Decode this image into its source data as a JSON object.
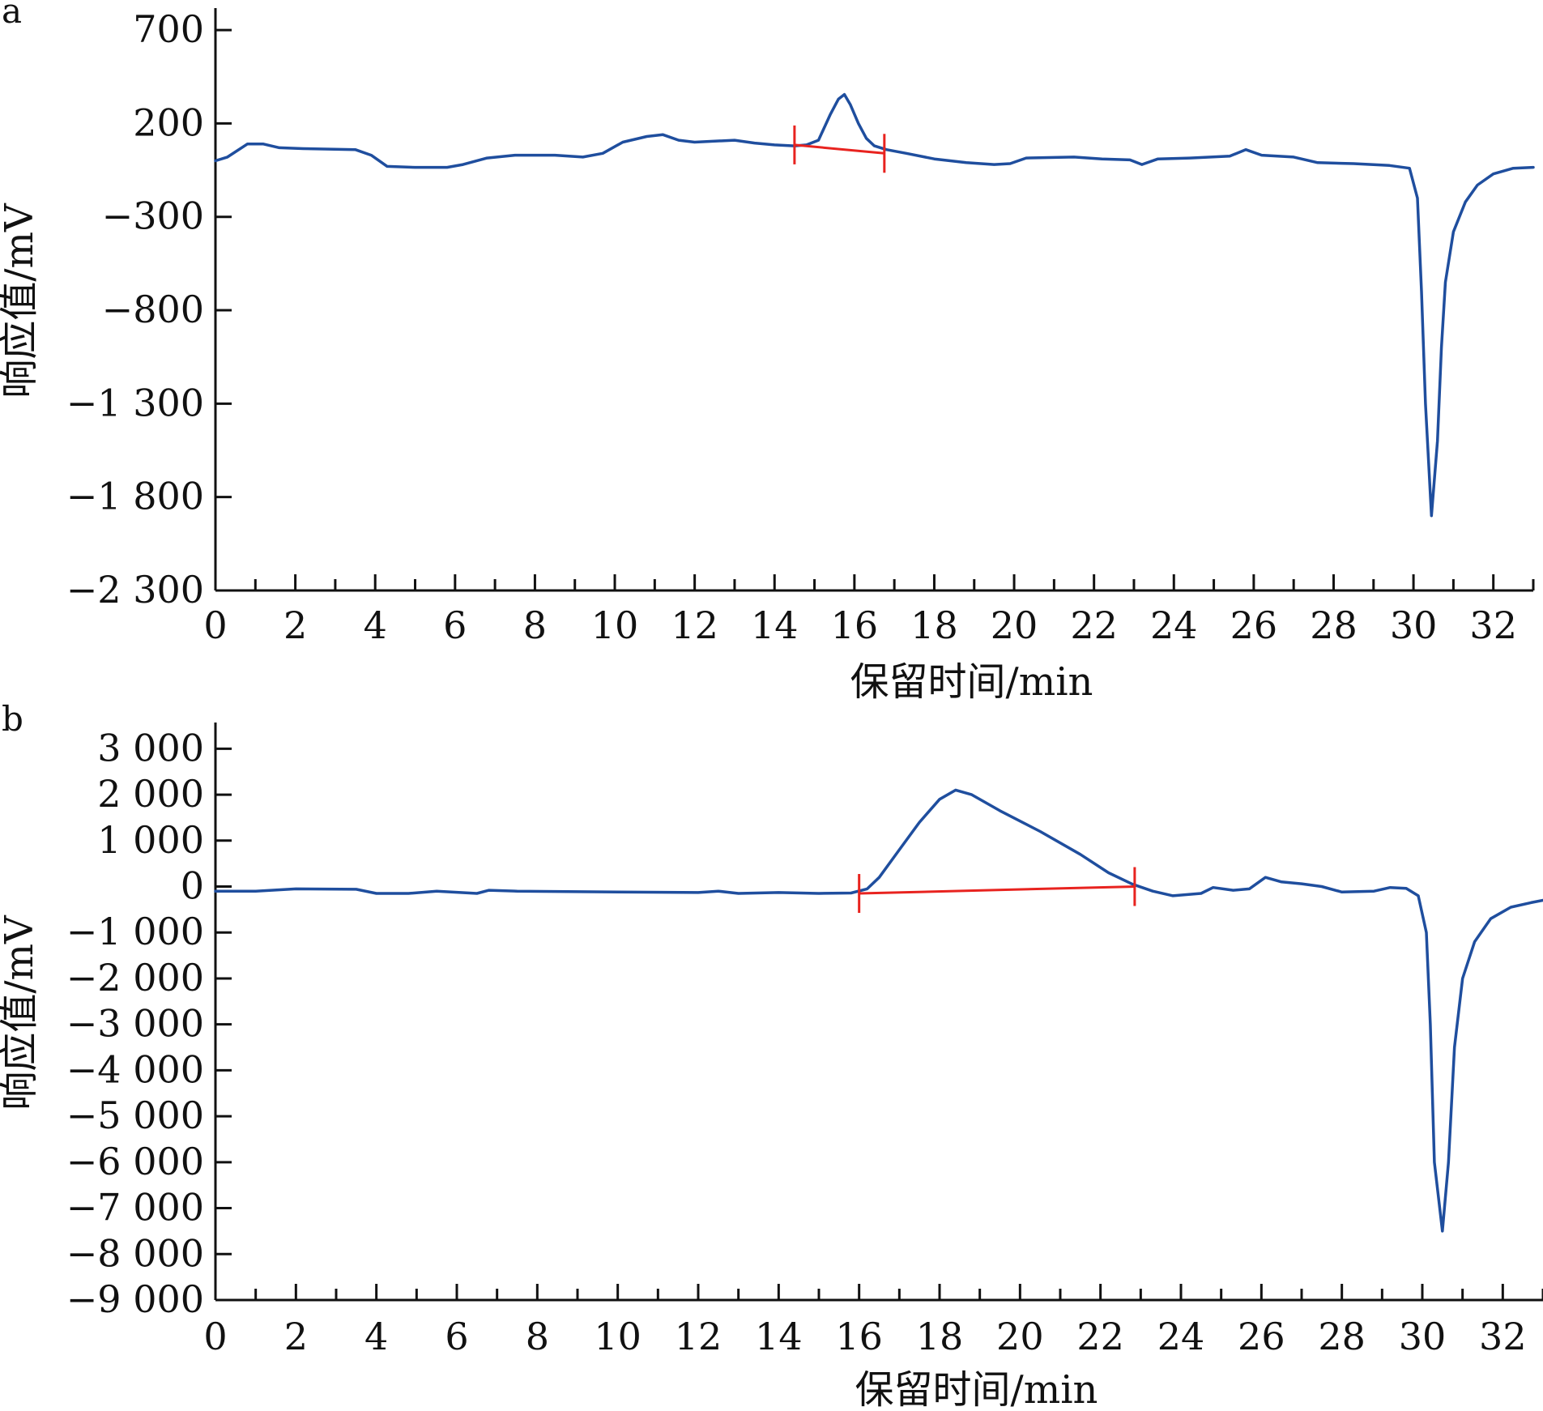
{
  "chart_data": [
    {
      "type": "line",
      "panel_label": "a",
      "xlabel": "保留时间/min",
      "ylabel": "响应值/mV",
      "xlim": [
        0,
        33
      ],
      "ylim": [
        -2300,
        800
      ],
      "x_ticks": [
        0,
        2,
        4,
        6,
        8,
        10,
        12,
        14,
        16,
        18,
        20,
        22,
        24,
        26,
        28,
        30,
        32
      ],
      "x_tick_labels": [
        "0",
        "2",
        "4",
        "6",
        "8",
        "10",
        "12",
        "14",
        "16",
        "18",
        "20",
        "22",
        "24",
        "26",
        "28",
        "30",
        "32"
      ],
      "y_ticks": [
        700,
        200,
        -300,
        -800,
        -1300,
        -1800,
        -2300
      ],
      "y_tick_labels": [
        "700",
        "200",
        "−300",
        "−800",
        "−1 300",
        "−1 800",
        "−2 300"
      ],
      "grid": false,
      "series": [
        {
          "color": "#1f4e9e",
          "points": [
            [
              0,
              0
            ],
            [
              0.3,
              20
            ],
            [
              0.8,
              90
            ],
            [
              1.2,
              90
            ],
            [
              1.6,
              70
            ],
            [
              2.2,
              65
            ],
            [
              3.5,
              60
            ],
            [
              3.9,
              30
            ],
            [
              4.3,
              -30
            ],
            [
              5.0,
              -35
            ],
            [
              5.8,
              -35
            ],
            [
              6.2,
              -20
            ],
            [
              6.8,
              15
            ],
            [
              7.5,
              30
            ],
            [
              8.5,
              30
            ],
            [
              9.2,
              20
            ],
            [
              9.7,
              40
            ],
            [
              10.2,
              100
            ],
            [
              10.8,
              130
            ],
            [
              11.2,
              140
            ],
            [
              11.6,
              110
            ],
            [
              12.0,
              100
            ],
            [
              12.5,
              105
            ],
            [
              13.0,
              110
            ],
            [
              13.5,
              95
            ],
            [
              14.0,
              85
            ],
            [
              14.5,
              80
            ],
            [
              14.8,
              85
            ],
            [
              15.1,
              110
            ],
            [
              15.4,
              250
            ],
            [
              15.6,
              330
            ],
            [
              15.75,
              355
            ],
            [
              15.9,
              300
            ],
            [
              16.1,
              200
            ],
            [
              16.3,
              120
            ],
            [
              16.5,
              80
            ],
            [
              16.8,
              60
            ],
            [
              17.3,
              40
            ],
            [
              18.0,
              10
            ],
            [
              18.8,
              -10
            ],
            [
              19.5,
              -20
            ],
            [
              19.9,
              -15
            ],
            [
              20.3,
              15
            ],
            [
              21.5,
              20
            ],
            [
              22.2,
              10
            ],
            [
              22.9,
              5
            ],
            [
              23.2,
              -20
            ],
            [
              23.6,
              10
            ],
            [
              24.4,
              15
            ],
            [
              25.4,
              25
            ],
            [
              25.8,
              60
            ],
            [
              26.2,
              30
            ],
            [
              27.0,
              20
            ],
            [
              27.6,
              -10
            ],
            [
              28.5,
              -15
            ],
            [
              29.4,
              -25
            ],
            [
              29.9,
              -40
            ],
            [
              30.1,
              -200
            ],
            [
              30.2,
              -700
            ],
            [
              30.3,
              -1300
            ],
            [
              30.45,
              -1900
            ],
            [
              30.6,
              -1500
            ],
            [
              30.7,
              -1000
            ],
            [
              30.8,
              -650
            ],
            [
              31.0,
              -380
            ],
            [
              31.3,
              -220
            ],
            [
              31.6,
              -130
            ],
            [
              32.0,
              -70
            ],
            [
              32.5,
              -40
            ],
            [
              33.0,
              -35
            ]
          ]
        }
      ],
      "baseline": {
        "color": "#e8231f",
        "from": [
          14.5,
          85
        ],
        "to": [
          16.75,
          40
        ]
      },
      "peak_markers": [
        14.5,
        16.75
      ]
    },
    {
      "type": "line",
      "panel_label": "b",
      "xlabel": "保留时间/min",
      "ylabel": "响应值/mV",
      "xlim": [
        0,
        33
      ],
      "ylim": [
        -9000,
        3500
      ],
      "x_ticks": [
        0,
        2,
        4,
        6,
        8,
        10,
        12,
        14,
        16,
        18,
        20,
        22,
        24,
        26,
        28,
        30,
        32
      ],
      "x_tick_labels": [
        "0",
        "2",
        "4",
        "6",
        "8",
        "10",
        "12",
        "14",
        "16",
        "18",
        "20",
        "22",
        "24",
        "26",
        "28",
        "30",
        "32"
      ],
      "y_ticks": [
        3000,
        2000,
        1000,
        0,
        -1000,
        -2000,
        -3000,
        -4000,
        -5000,
        -6000,
        -7000,
        -8000,
        -9000
      ],
      "y_tick_labels": [
        "3 000",
        "2 000",
        "1 000",
        "0",
        "−1 000",
        "−2 000",
        "−3 000",
        "−4 000",
        "−5 000",
        "−6 000",
        "−7 000",
        "−8 000",
        "−9 000"
      ],
      "grid": false,
      "series": [
        {
          "color": "#1f4e9e",
          "points": [
            [
              0,
              -100
            ],
            [
              1.0,
              -100
            ],
            [
              2.0,
              -50
            ],
            [
              3.5,
              -60
            ],
            [
              4.0,
              -150
            ],
            [
              4.8,
              -150
            ],
            [
              5.5,
              -100
            ],
            [
              6.5,
              -150
            ],
            [
              6.8,
              -80
            ],
            [
              7.5,
              -100
            ],
            [
              10.0,
              -120
            ],
            [
              12.0,
              -130
            ],
            [
              12.5,
              -100
            ],
            [
              13.0,
              -150
            ],
            [
              14.0,
              -130
            ],
            [
              15.0,
              -150
            ],
            [
              15.8,
              -140
            ],
            [
              16.2,
              -50
            ],
            [
              16.5,
              200
            ],
            [
              17.0,
              800
            ],
            [
              17.5,
              1400
            ],
            [
              18.0,
              1900
            ],
            [
              18.4,
              2100
            ],
            [
              18.8,
              2000
            ],
            [
              19.5,
              1650
            ],
            [
              20.5,
              1200
            ],
            [
              21.5,
              700
            ],
            [
              22.2,
              300
            ],
            [
              22.8,
              50
            ],
            [
              23.3,
              -100
            ],
            [
              23.8,
              -200
            ],
            [
              24.5,
              -150
            ],
            [
              24.8,
              -20
            ],
            [
              25.3,
              -80
            ],
            [
              25.7,
              -50
            ],
            [
              26.1,
              200
            ],
            [
              26.5,
              100
            ],
            [
              27.0,
              60
            ],
            [
              27.5,
              0
            ],
            [
              28.0,
              -120
            ],
            [
              28.8,
              -100
            ],
            [
              29.2,
              -20
            ],
            [
              29.6,
              -40
            ],
            [
              29.9,
              -200
            ],
            [
              30.1,
              -1000
            ],
            [
              30.2,
              -3000
            ],
            [
              30.3,
              -6000
            ],
            [
              30.5,
              -7500
            ],
            [
              30.65,
              -6000
            ],
            [
              30.8,
              -3500
            ],
            [
              31.0,
              -2000
            ],
            [
              31.3,
              -1200
            ],
            [
              31.7,
              -700
            ],
            [
              32.2,
              -450
            ],
            [
              32.7,
              -350
            ],
            [
              33.0,
              -300
            ]
          ]
        }
      ],
      "baseline": {
        "color": "#e8231f",
        "from": [
          16.0,
          -150
        ],
        "to": [
          22.85,
          0
        ]
      },
      "peak_markers": [
        16.0,
        22.85
      ]
    }
  ]
}
